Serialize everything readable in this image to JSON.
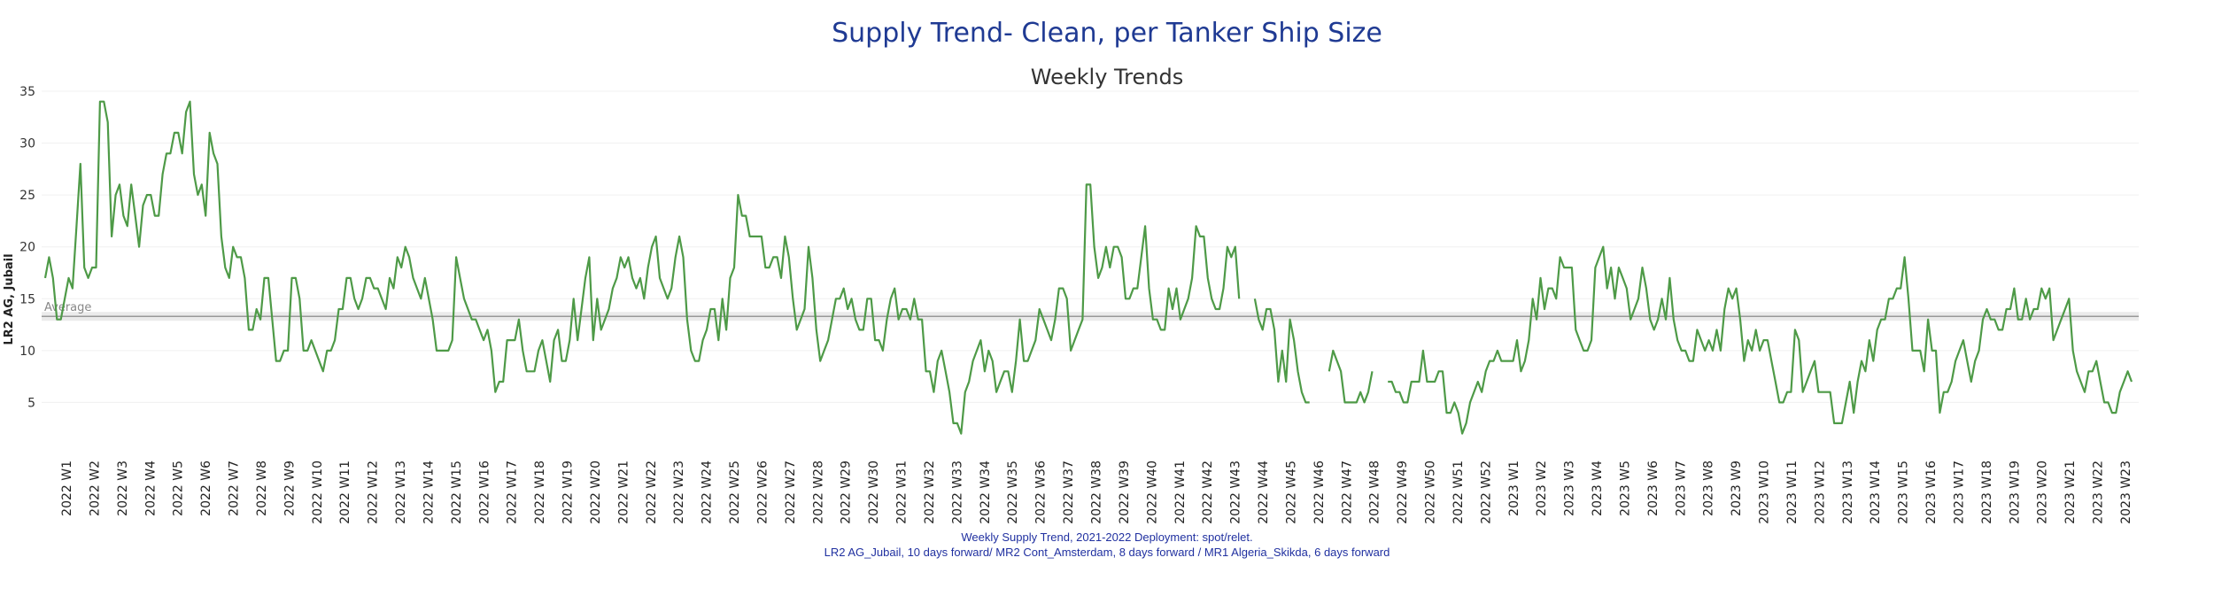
{
  "chart_data": {
    "type": "line",
    "title": "Supply Trend- Clean, per Tanker Ship Size",
    "subtitle": "Weekly Trends",
    "ylabel": "LR2 AG, Jubail",
    "xlabel": "",
    "ylim": [
      0,
      35
    ],
    "yticks": [
      5,
      10,
      15,
      20,
      25,
      30,
      35
    ],
    "grid": true,
    "average": {
      "label": "Average",
      "value": 13.3
    },
    "line_color": "#4e9a47",
    "title_color": "#1f3a93",
    "footnote_lines": [
      "Weekly Supply Trend, 2021-2022 Deployment: spot/relet.",
      "LR2 AG_Jubail, 10 days forward/ MR2 Cont_Amsterdam, 8 days forward / MR1 Algeria_Skikda, 6 days forward"
    ],
    "categories": [
      "2022 W1",
      "2022 W2",
      "2022 W3",
      "2022 W4",
      "2022 W5",
      "2022 W6",
      "2022 W7",
      "2022 W8",
      "2022 W9",
      "2022 W10",
      "2022 W11",
      "2022 W12",
      "2022 W13",
      "2022 W14",
      "2022 W15",
      "2022 W16",
      "2022 W17",
      "2022 W18",
      "2022 W19",
      "2022 W20",
      "2022 W21",
      "2022 W22",
      "2022 W23",
      "2022 W24",
      "2022 W25",
      "2022 W26",
      "2022 W27",
      "2022 W28",
      "2022 W29",
      "2022 W30",
      "2022 W31",
      "2022 W32",
      "2022 W33",
      "2022 W34",
      "2022 W35",
      "2022 W36",
      "2022 W37",
      "2022 W38",
      "2022 W39",
      "2022 W40",
      "2022 W41",
      "2022 W42",
      "2022 W43",
      "2022 W44",
      "2022 W45",
      "2022 W46",
      "2022 W47",
      "2022 W48",
      "2022 W49",
      "2022 W50",
      "2022 W51",
      "2022 W52",
      "2023 W1",
      "2023 W2",
      "2023 W3",
      "2023 W4",
      "2023 W5",
      "2023 W6",
      "2023 W7",
      "2023 W8",
      "2023 W9",
      "2023 W10",
      "2023 W11",
      "2023 W12",
      "2023 W13",
      "2023 W14",
      "2023 W15",
      "2023 W16",
      "2023 W17",
      "2023 W18",
      "2023 W19",
      "2023 W20",
      "2023 W21",
      "2023 W22",
      "2023 W23"
    ],
    "series": [
      {
        "name": "LR2 AG, Jubail",
        "segments": [
          [
            17,
            19,
            17,
            13,
            13,
            15,
            17,
            16,
            22,
            28,
            18,
            17,
            18,
            18,
            34,
            34,
            32,
            21,
            25,
            26,
            23,
            22,
            26,
            23,
            20,
            24,
            25,
            25,
            23,
            23,
            27,
            29,
            29,
            31,
            31,
            29,
            33,
            34,
            27,
            25,
            26,
            23,
            31,
            29,
            28,
            21,
            18,
            17,
            20,
            19,
            19,
            17,
            12,
            12,
            14,
            13,
            17,
            17,
            13,
            9,
            9,
            10,
            10,
            17,
            17,
            15,
            10,
            10,
            11,
            10,
            9,
            8,
            10,
            10,
            11,
            14,
            14,
            17,
            17,
            15,
            14,
            15,
            17,
            17,
            16,
            16,
            15,
            14,
            17,
            16,
            19,
            18,
            20,
            19,
            17,
            16,
            15,
            17,
            15,
            13,
            10,
            10,
            10,
            10,
            11,
            19,
            17,
            15,
            14,
            13,
            13,
            12,
            11,
            12,
            10,
            6,
            7,
            7,
            11,
            11,
            11,
            13,
            10,
            8,
            8,
            8,
            10,
            11,
            9,
            7,
            11,
            12,
            9,
            9,
            11,
            15,
            11,
            14,
            17,
            19,
            11,
            15,
            12,
            13,
            14,
            16,
            17,
            19,
            18,
            19,
            17,
            16,
            17,
            15,
            18,
            20,
            21,
            17,
            16,
            15,
            16,
            19,
            21,
            19,
            13,
            10,
            9,
            9,
            11,
            12,
            14,
            14,
            11,
            15,
            12,
            17,
            18,
            25,
            23,
            23,
            21,
            21,
            21,
            21,
            18,
            18,
            19,
            19,
            17,
            21,
            19,
            15,
            12,
            13,
            14,
            20,
            17,
            12,
            9,
            10,
            11,
            13,
            15,
            15,
            16,
            14,
            15,
            13,
            12,
            12,
            15,
            15,
            11,
            11,
            10,
            13,
            15,
            16,
            13,
            14,
            14,
            13,
            15,
            13,
            13,
            8,
            8,
            6,
            9,
            10,
            8,
            6,
            3,
            3,
            2,
            6,
            7,
            9,
            10,
            11,
            8,
            10,
            9,
            6,
            7,
            8,
            8,
            6,
            9,
            13,
            9,
            9,
            10,
            11,
            14,
            13,
            12,
            11,
            13,
            16,
            16,
            15,
            10,
            11,
            12,
            13,
            26,
            26,
            20,
            17,
            18,
            20,
            18,
            20,
            20,
            19,
            15,
            15,
            16,
            16,
            19,
            22,
            16,
            13,
            13,
            12,
            12,
            16,
            14,
            16,
            13,
            14,
            15,
            17,
            22,
            21,
            21,
            17,
            15,
            14,
            14,
            16,
            20,
            19,
            20,
            15
          ]
        ],
        "segments_2": [
          [
            15,
            13,
            12,
            14,
            14,
            12,
            7,
            10,
            7,
            13,
            11,
            8,
            6,
            5,
            5
          ]
        ],
        "segments_3": [
          [
            8,
            10,
            9,
            8,
            5,
            5,
            5,
            5,
            6,
            5,
            6,
            8
          ]
        ],
        "segments_4": [
          [
            7,
            7,
            6,
            6,
            5,
            5,
            7,
            7,
            7,
            10,
            7,
            7,
            7,
            8,
            8,
            4,
            4,
            5,
            4,
            2,
            3,
            5,
            6,
            7,
            6,
            8,
            9,
            9,
            10,
            9,
            9,
            9,
            9,
            11,
            8,
            9,
            11,
            15,
            13,
            17,
            14,
            16,
            16,
            15,
            19,
            18,
            18,
            18,
            12,
            11,
            10,
            10,
            11,
            18,
            19,
            20,
            16,
            18,
            15,
            18,
            17,
            16,
            13,
            14,
            15,
            18,
            16,
            13,
            12,
            13,
            15,
            13,
            17,
            13,
            11,
            10,
            10,
            9,
            9,
            12,
            11,
            10,
            11,
            10,
            12,
            10,
            14,
            16,
            15,
            16,
            13,
            9,
            11,
            10,
            12,
            10,
            11,
            11,
            9,
            7,
            5,
            5,
            6,
            6,
            12,
            11,
            6,
            7,
            8,
            9,
            6,
            6,
            6,
            6,
            3,
            3,
            3,
            5,
            7,
            4,
            7,
            9,
            8,
            11,
            9,
            12,
            13,
            13,
            15,
            15,
            16,
            16,
            19,
            15,
            10,
            10,
            10,
            8,
            13,
            10,
            10,
            4,
            6,
            6,
            7,
            9,
            10,
            11,
            9,
            7,
            9,
            10,
            13,
            14,
            13,
            13,
            12,
            12,
            14,
            14,
            16,
            13,
            13,
            15,
            13,
            14,
            14,
            16,
            15,
            16,
            11,
            12,
            13,
            14,
            15,
            10,
            8,
            7,
            6,
            8,
            8,
            9,
            7,
            5,
            5,
            4,
            4,
            6,
            7,
            8,
            7
          ]
        ]
      }
    ]
  }
}
